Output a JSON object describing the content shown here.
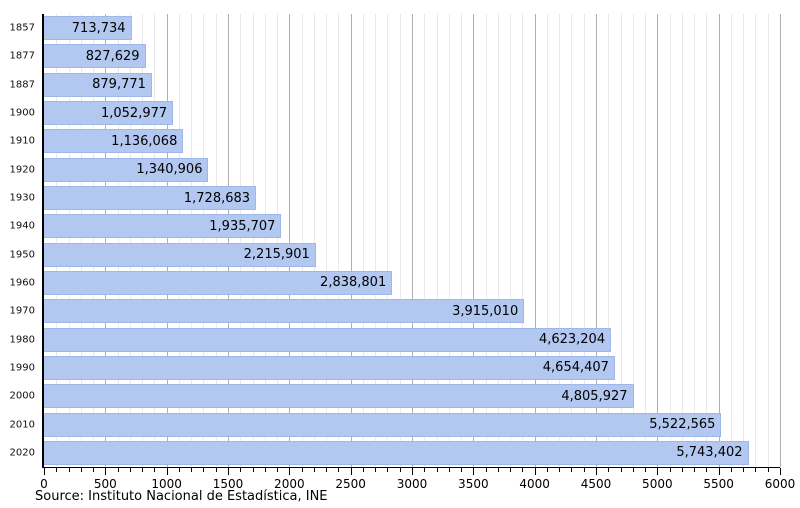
{
  "chart_data": {
    "type": "bar",
    "orientation": "horizontal",
    "title": "",
    "xlabel": "",
    "ylabel": "",
    "categories": [
      "1857",
      "1877",
      "1887",
      "1900",
      "1910",
      "1920",
      "1930",
      "1940",
      "1950",
      "1960",
      "1970",
      "1980",
      "1990",
      "2000",
      "2010",
      "2020"
    ],
    "values": [
      713734,
      827629,
      879771,
      1052977,
      1136068,
      1340906,
      1728683,
      1935707,
      2215901,
      2838801,
      3915010,
      4623204,
      4654407,
      4805927,
      5522565,
      5743402
    ],
    "value_labels": [
      "713,734",
      "827,629",
      "879,771",
      "1,052,977",
      "1,136,068",
      "1,340,906",
      "1,728,683",
      "1,935,707",
      "2,215,901",
      "2,838,801",
      "3,915,010",
      "4,623,204",
      "4,654,407",
      "4,805,927",
      "5,522,565",
      "5,743,402"
    ],
    "xlim": [
      0,
      6000
    ],
    "x_value_divisor": 1000,
    "x_major_tick_step": 500,
    "x_minor_tick_step": 100,
    "x_tick_labels": [
      "0",
      "500",
      "1000",
      "1500",
      "2000",
      "2500",
      "3000",
      "3500",
      "4000",
      "4500",
      "5000",
      "5500",
      "6000"
    ],
    "grid": "vertical minor every 100, major every 500",
    "legend": "none",
    "bar_fill_color": "#b2c8f0",
    "bar_border_color": "#9db7e8",
    "minor_grid_color": "#e9e9e9",
    "major_grid_color": "#aeaeae",
    "source_note": "Source: Instituto Nacional de Estadística, INE"
  }
}
